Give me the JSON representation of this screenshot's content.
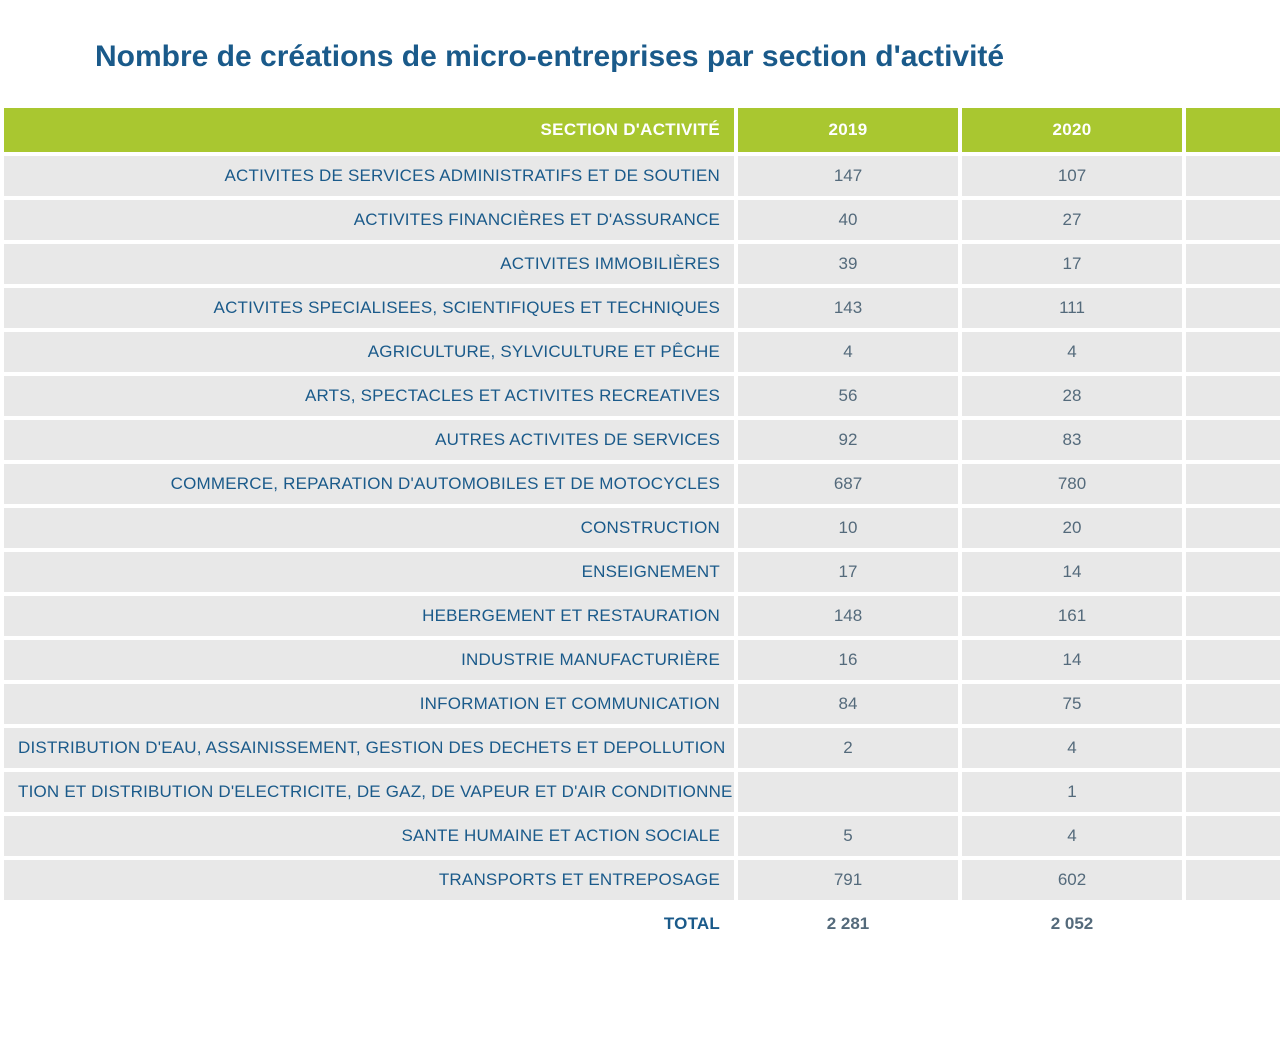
{
  "title": "Nombre de créations de micro-entreprises par section d'activité",
  "table": {
    "header": {
      "section": "SECTION D'ACTIVITÉ",
      "y2019": "2019",
      "y2020": "2020",
      "stub": ""
    },
    "rows": [
      {
        "label": "ACTIVITES DE SERVICES ADMINISTRATIFS ET DE SOUTIEN",
        "y2019": "147",
        "y2020": "107"
      },
      {
        "label": "ACTIVITES FINANCIÈRES ET D'ASSURANCE",
        "y2019": "40",
        "y2020": "27"
      },
      {
        "label": "ACTIVITES IMMOBILIÈRES",
        "y2019": "39",
        "y2020": "17"
      },
      {
        "label": "ACTIVITES SPECIALISEES, SCIENTIFIQUES ET TECHNIQUES",
        "y2019": "143",
        "y2020": "111"
      },
      {
        "label": "AGRICULTURE, SYLVICULTURE ET PÊCHE",
        "y2019": "4",
        "y2020": "4"
      },
      {
        "label": "ARTS, SPECTACLES ET ACTIVITES RECREATIVES",
        "y2019": "56",
        "y2020": "28"
      },
      {
        "label": "AUTRES ACTIVITES DE SERVICES",
        "y2019": "92",
        "y2020": "83"
      },
      {
        "label": "COMMERCE, REPARATION D'AUTOMOBILES ET DE MOTOCYCLES",
        "y2019": "687",
        "y2020": "780"
      },
      {
        "label": "CONSTRUCTION",
        "y2019": "10",
        "y2020": "20"
      },
      {
        "label": "ENSEIGNEMENT",
        "y2019": "17",
        "y2020": "14"
      },
      {
        "label": "HEBERGEMENT ET RESTAURATION",
        "y2019": "148",
        "y2020": "161"
      },
      {
        "label": "INDUSTRIE MANUFACTURIÈRE",
        "y2019": "16",
        "y2020": "14"
      },
      {
        "label": "INFORMATION ET COMMUNICATION",
        "y2019": "84",
        "y2020": "75"
      },
      {
        "label": "DISTRIBUTION D'EAU, ASSAINISSEMENT, GESTION DES DECHETS ET DEPOLLUTION",
        "y2019": "2",
        "y2020": "4"
      },
      {
        "label": "TION ET DISTRIBUTION D'ELECTRICITE, DE GAZ, DE VAPEUR ET D'AIR CONDITIONNE",
        "y2019": "",
        "y2020": "1"
      },
      {
        "label": "SANTE HUMAINE ET ACTION SOCIALE",
        "y2019": "5",
        "y2020": "4"
      },
      {
        "label": "TRANSPORTS ET ENTREPOSAGE",
        "y2019": "791",
        "y2020": "602"
      }
    ],
    "total": {
      "label": "TOTAL",
      "y2019": "2 281",
      "y2020": "2 052"
    }
  },
  "style": {
    "title_color": "#1a5a8a",
    "header_bg": "#a9c730",
    "header_fg": "#ffffff",
    "row_bg": "#e8e8e8",
    "label_fg": "#1a5a8a",
    "num_fg": "#546a7b",
    "total_bg": "#ffffff",
    "title_fontsize": 30,
    "header_fontsize": 17,
    "cell_fontsize": 17,
    "col_widths": {
      "label": 730,
      "year": 220,
      "stub": 100
    },
    "border_spacing": 4
  }
}
